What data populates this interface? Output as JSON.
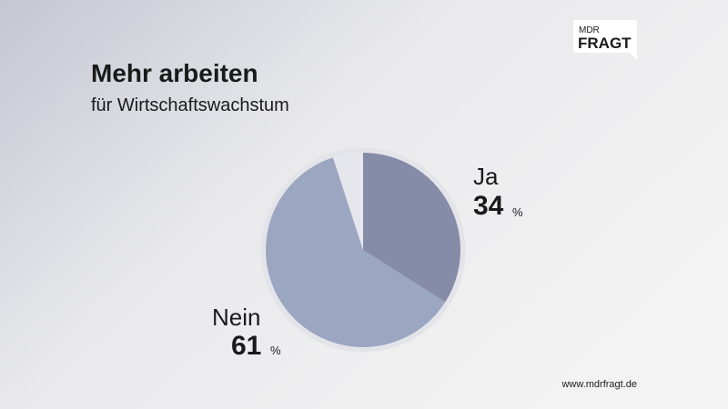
{
  "logo": {
    "line1": "MDR",
    "line2": "FRAGT"
  },
  "footer": "www.mdrfragt.de",
  "chart_data": {
    "type": "pie",
    "title": "Mehr arbeiten",
    "subtitle": "für Wirtschaftswachstum",
    "categories": [
      "Ja",
      "Nein",
      null
    ],
    "values": [
      34,
      61,
      5
    ],
    "unit": "%",
    "colors": [
      "#868ba8",
      "#9ba6c0",
      "#e6e7ec"
    ]
  }
}
